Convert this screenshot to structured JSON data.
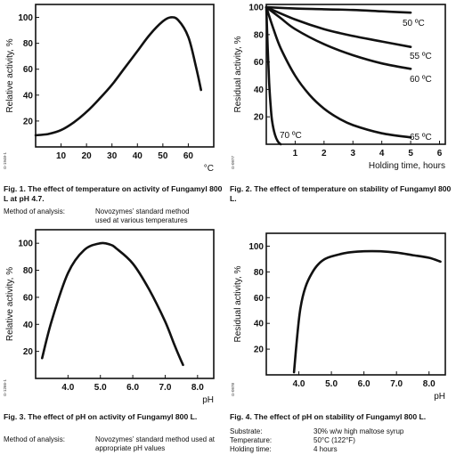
{
  "chart_data": [
    {
      "id": "fig1",
      "type": "line",
      "xlabel": "°C",
      "ylabel": "Relative activity, %",
      "code": "G-1948-1",
      "xlim": [
        0,
        70
      ],
      "ylim": [
        0,
        110
      ],
      "xticks": [
        10,
        20,
        30,
        40,
        50,
        60
      ],
      "yticks": [
        20,
        40,
        60,
        80,
        100
      ],
      "grid": false,
      "series": [
        {
          "x": [
            0,
            5,
            10,
            15,
            20,
            25,
            30,
            35,
            40,
            45,
            50,
            53,
            56,
            60,
            63,
            65
          ],
          "values": [
            9,
            10,
            13,
            19,
            27,
            37,
            48,
            61,
            74,
            87,
            97,
            100,
            98,
            85,
            62,
            44
          ]
        }
      ]
    },
    {
      "id": "fig2",
      "type": "line",
      "xlabel": "Holding time, hours",
      "ylabel": "Residual activity, %",
      "code": "G-0977",
      "xlim": [
        0,
        6.2
      ],
      "ylim": [
        0,
        102
      ],
      "xticks": [
        1,
        2,
        3,
        4,
        5,
        6
      ],
      "yticks": [
        20,
        40,
        60,
        80,
        100
      ],
      "grid": false,
      "series": [
        {
          "name": "50 ºC",
          "x": [
            0,
            1,
            2,
            3,
            4,
            5
          ],
          "values": [
            100,
            99,
            98.5,
            98,
            97,
            96
          ]
        },
        {
          "name": "55 ºC",
          "x": [
            0,
            1,
            2,
            3,
            4,
            5
          ],
          "values": [
            100,
            91,
            84,
            79,
            75,
            71
          ]
        },
        {
          "name": "60 ºC",
          "x": [
            0,
            0.5,
            1,
            2,
            3,
            4,
            5
          ],
          "values": [
            100,
            92,
            84,
            73,
            65,
            59,
            55
          ]
        },
        {
          "name": "65 ºC",
          "x": [
            0,
            0.25,
            0.5,
            1,
            1.5,
            2,
            2.5,
            3,
            4,
            5
          ],
          "values": [
            100,
            84,
            70,
            50,
            36,
            26,
            19,
            14,
            8,
            5
          ]
        },
        {
          "name": "70 ºC",
          "x": [
            0,
            0.05,
            0.1,
            0.15,
            0.2,
            0.3,
            0.4,
            0.5
          ],
          "values": [
            100,
            70,
            45,
            28,
            17,
            7,
            2,
            0
          ]
        }
      ]
    },
    {
      "id": "fig3",
      "type": "line",
      "xlabel": "pH",
      "ylabel": "Relative activity, %",
      "code": "G-1266-1",
      "xlim": [
        3,
        8.5
      ],
      "ylim": [
        0,
        110
      ],
      "xticks": [
        "4.0",
        "5.0",
        "6.0",
        "7.0",
        "8.0"
      ],
      "yticks": [
        20,
        40,
        60,
        80,
        100
      ],
      "grid": false,
      "series": [
        {
          "x": [
            3.2,
            3.5,
            4.0,
            4.5,
            5.0,
            5.3,
            5.5,
            6.0,
            6.5,
            7.0,
            7.3,
            7.55
          ],
          "values": [
            15,
            43,
            78,
            95,
            100,
            99,
            96,
            85,
            66,
            42,
            24,
            10
          ]
        }
      ]
    },
    {
      "id": "fig4",
      "type": "line",
      "xlabel": "pH",
      "ylabel": "Residual activity, %",
      "code": "G-0978",
      "xlim": [
        3,
        8.5
      ],
      "ylim": [
        0,
        110
      ],
      "xticks": [
        "4.0",
        "5.0",
        "6.0",
        "7.0",
        "8.0"
      ],
      "yticks": [
        20,
        40,
        60,
        80,
        100
      ],
      "grid": false,
      "series": [
        {
          "x": [
            3.85,
            3.95,
            4.05,
            4.2,
            4.4,
            4.6,
            4.8,
            5.0,
            5.5,
            6.0,
            6.5,
            7.0,
            7.5,
            8.0,
            8.35
          ],
          "values": [
            2,
            30,
            52,
            68,
            79,
            86,
            90,
            92,
            95,
            96,
            96,
            95,
            93,
            91,
            88
          ]
        }
      ]
    }
  ],
  "captions": {
    "fig1": "Fig. 1. The effect of temperature on activity of Fungamyl 800 L at pH 4.7.",
    "fig2": "Fig. 2. The effect of temperature on stability of Fungamyl 800 L.",
    "fig3": "Fig. 3. The effect of pH on activity of Fungamyl 800 L.",
    "fig4": "Fig. 4. The effect of pH on stability of Fungamyl 800 L."
  },
  "notes": {
    "fig1": [
      {
        "key": "Method of analysis:",
        "value": "Novozymes’ standard method used at various temperatures"
      }
    ],
    "fig3": [
      {
        "key": "Method of analysis:",
        "value": "Novozymes’ standard method used at appropriate pH values"
      }
    ],
    "fig4": [
      {
        "key": "Substrate:",
        "value": "30% w/w high maltose syrup"
      },
      {
        "key": "Temperature:",
        "value": "50°C (122°F)"
      },
      {
        "key": "Holding time:",
        "value": "4 hours"
      }
    ]
  }
}
